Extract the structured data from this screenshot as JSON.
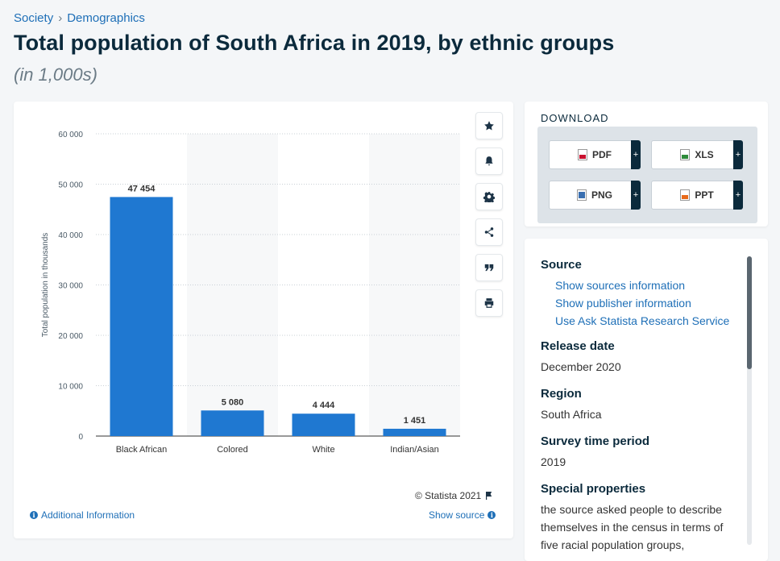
{
  "breadcrumb": {
    "items": [
      "Society",
      "Demographics"
    ],
    "separator": "›"
  },
  "title": "Total population of South Africa in 2019, by ethnic groups",
  "subtitle": "(in 1,000s)",
  "toolbar": {
    "icons": [
      "star-icon",
      "bell-icon",
      "gear-icon",
      "share-icon",
      "quote-icon",
      "print-icon"
    ]
  },
  "chart_data": {
    "type": "bar",
    "categories": [
      "Black African",
      "Colored",
      "White",
      "Indian/Asian"
    ],
    "values": [
      47454,
      5080,
      4444,
      1451
    ],
    "value_labels": [
      "47 454",
      "5 080",
      "4 444",
      "1 451"
    ],
    "ylabel": "Total population in thousands",
    "xlabel": "",
    "ylim": [
      0,
      60000
    ],
    "yticks": [
      0,
      10000,
      20000,
      30000,
      40000,
      50000,
      60000
    ],
    "ytick_labels": [
      "0",
      "10 000",
      "20 000",
      "30 000",
      "40 000",
      "50 000",
      "60 000"
    ],
    "bar_color": "#1f78d1",
    "grid": true
  },
  "footer": {
    "copyright": "© Statista 2021",
    "additional_info": "Additional Information",
    "show_source": "Show source"
  },
  "download": {
    "title": "DOWNLOAD",
    "buttons": [
      {
        "label": "PDF",
        "icon": "pdf-icon"
      },
      {
        "label": "XLS",
        "icon": "xls-icon"
      },
      {
        "label": "PNG",
        "icon": "png-icon"
      },
      {
        "label": "PPT",
        "icon": "ppt-icon"
      }
    ],
    "plus": "+"
  },
  "details": {
    "source_label": "Source",
    "source_links": [
      "Show sources information",
      "Show publisher information",
      "Use Ask Statista Research Service"
    ],
    "release_label": "Release date",
    "release_value": "December 2020",
    "region_label": "Region",
    "region_value": "South Africa",
    "period_label": "Survey time period",
    "period_value": "2019",
    "special_label": "Special properties",
    "special_value": "the source asked people to describe themselves in the census in terms of five racial population groups,"
  },
  "colors": {
    "accent": "#1e6fb7",
    "title": "#0b2a3c",
    "bar": "#1f78d1"
  }
}
